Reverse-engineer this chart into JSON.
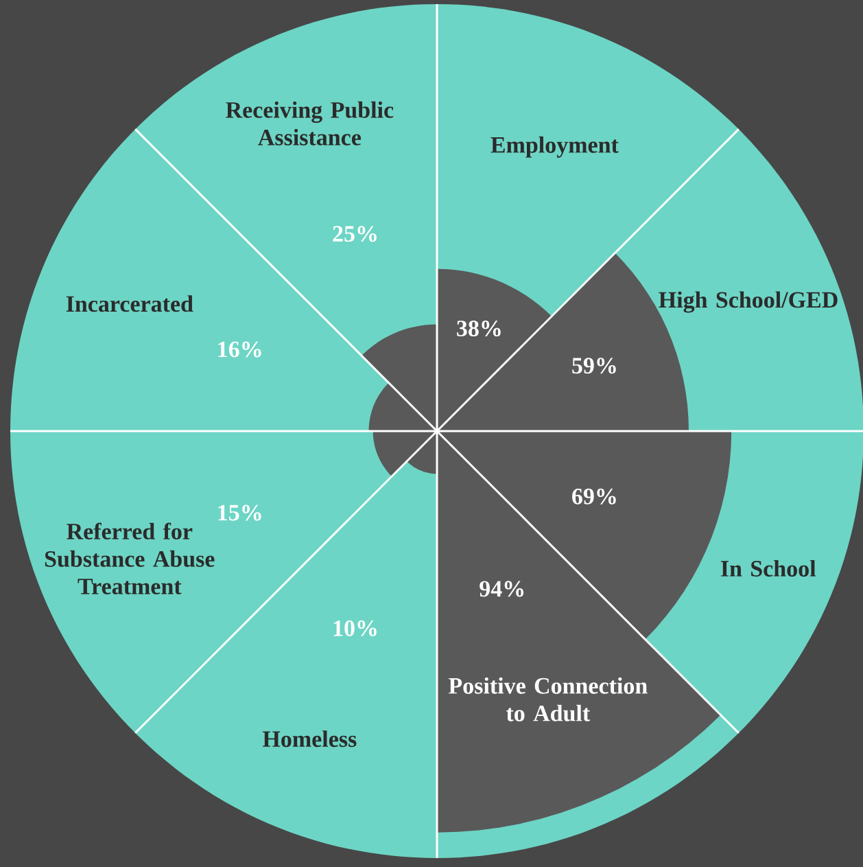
{
  "chart_data": {
    "type": "other",
    "categories": [
      "Employment",
      "High School/GED",
      "In School",
      "Positive Connection to Adult",
      "Homeless",
      "Referred for Substance Abuse Treatment",
      "Incarcerated",
      "Receiving Public Assistance"
    ],
    "series": [
      {
        "color": "#595959",
        "values": [
          38,
          59,
          69,
          94,
          10,
          15,
          16,
          25
        ],
        "value_labels": [
          "38%",
          "59%",
          "69%",
          "94%",
          "10%",
          "15%",
          "16%",
          "25%"
        ]
      }
    ]
  }
}
